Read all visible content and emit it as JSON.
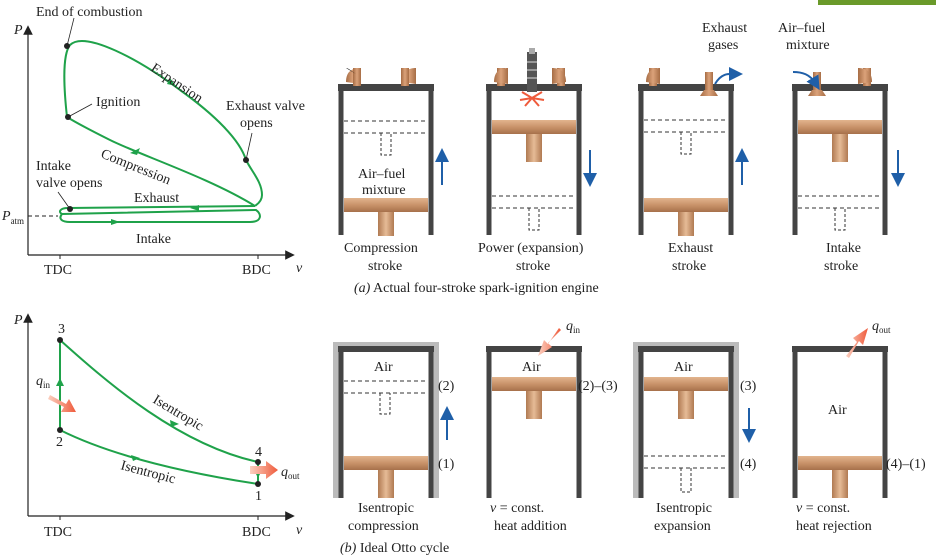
{
  "colors": {
    "cycle": "#1fa24a",
    "wall": "#444444",
    "piston": "#c9936a",
    "arrow": "#1f5fa8",
    "heat": "#f27a5a"
  },
  "pv_top": {
    "p_axis": "P",
    "v_axis": "v",
    "tdc": "TDC",
    "bdc": "BDC",
    "patm": "P",
    "patm_sub": "atm",
    "end_combustion": "End of combustion",
    "ignition": "Ignition",
    "expansion": "Expansion",
    "compression": "Compression",
    "exhaust_valve_1": "Exhaust valve",
    "exhaust_valve_2": "opens",
    "intake_valve_1": "Intake",
    "intake_valve_2": "valve opens",
    "exhaust": "Exhaust",
    "intake": "Intake"
  },
  "pv_bottom": {
    "p_axis": "P",
    "v_axis": "v",
    "tdc": "TDC",
    "bdc": "BDC",
    "pt1": "1",
    "pt2": "2",
    "pt3": "3",
    "pt4": "4",
    "q_in": "q",
    "q_in_sub": "in",
    "q_out": "q",
    "q_out_sub": "out",
    "isentropic_top": "Isentropic",
    "isentropic_bottom": "Isentropic"
  },
  "actual": {
    "caption_letter": "(a)",
    "caption": " Actual four-stroke spark-ignition engine",
    "air_fuel_in_1": "Air–fuel",
    "air_fuel_in_2": "mixture",
    "exhaust_gases_1": "Exhaust",
    "exhaust_gases_2": "gases",
    "air_fuel_top_1": "Air–fuel",
    "air_fuel_top_2": "mixture",
    "strokes": [
      {
        "l1": "Compression",
        "l2": "stroke"
      },
      {
        "l1": "Power (expansion)",
        "l2": "stroke"
      },
      {
        "l1": "Exhaust",
        "l2": "stroke"
      },
      {
        "l1": "Intake",
        "l2": "stroke"
      }
    ]
  },
  "ideal": {
    "caption_letter": "(b)",
    "caption": " Ideal Otto cycle",
    "air": "Air",
    "state_2": "(2)",
    "state_1": "(1)",
    "state_23": "(2)–(3)",
    "state_3": "(3)",
    "state_4": "(4)",
    "state_41": "(4)–(1)",
    "q_in": "q",
    "q_in_sub": "in",
    "q_out": "q",
    "q_out_sub": "out",
    "processes": [
      {
        "l1": "Isentropic",
        "l2": "compression"
      },
      {
        "v": "v",
        "l2rest": " = const.",
        "l2b": "heat addition"
      },
      {
        "l1": "Isentropic",
        "l2": "expansion"
      },
      {
        "v": "v",
        "l2rest": " = const.",
        "l2b": "heat rejection"
      }
    ]
  }
}
